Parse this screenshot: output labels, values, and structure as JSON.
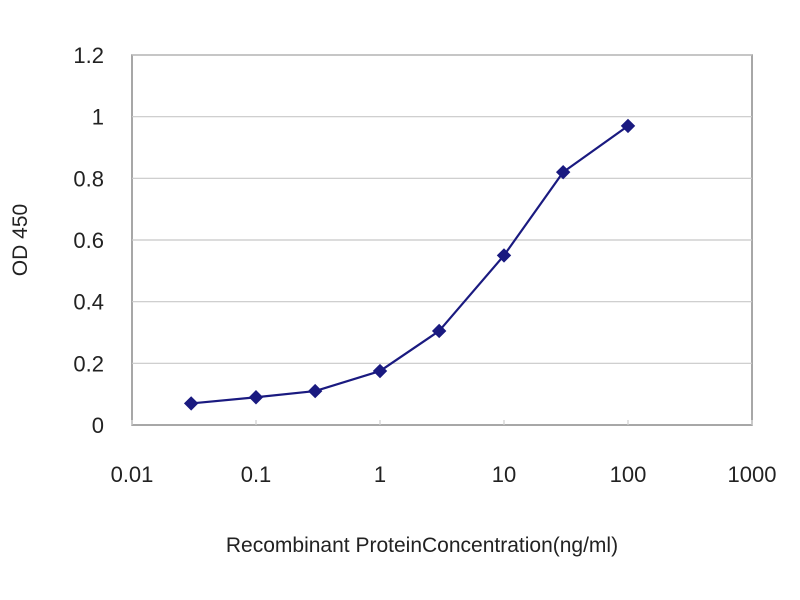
{
  "chart_data": {
    "type": "line",
    "title": "",
    "xlabel": "Recombinant ProteinConcentration(ng/ml)",
    "ylabel": "OD 450",
    "xscale": "log",
    "xlim": [
      0.01,
      1000
    ],
    "ylim": [
      0,
      1.2
    ],
    "x_ticks": [
      "0.01",
      "0.1",
      "1",
      "10",
      "100",
      "1000"
    ],
    "y_ticks": [
      "0",
      "0.2",
      "0.4",
      "0.6",
      "0.8",
      "1",
      "1.2"
    ],
    "grid": "horizontal",
    "legend": "none",
    "series": [
      {
        "x": [
          0.03,
          0.1,
          0.3,
          1,
          3,
          10,
          30,
          100
        ],
        "y": [
          0.07,
          0.09,
          0.11,
          0.175,
          0.305,
          0.55,
          0.82,
          0.97
        ],
        "color": "#1a1a80",
        "marker": "diamond"
      }
    ],
    "colors": {
      "plot_border": "#8a8a8a",
      "grid": "#c8c8c8",
      "line": "#1a1a80"
    }
  }
}
